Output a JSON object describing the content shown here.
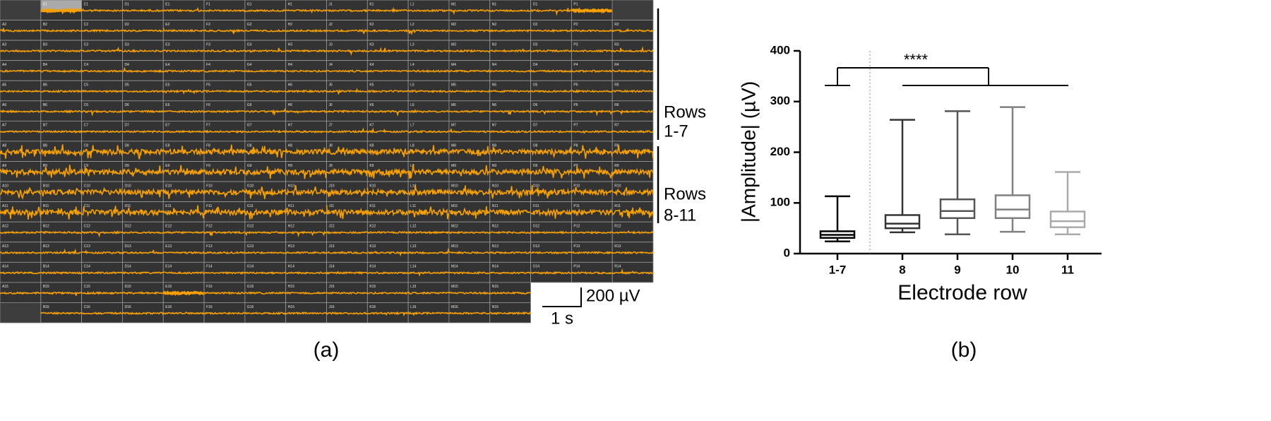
{
  "panel_a": {
    "label": "(a)",
    "rows": [
      [
        null,
        "B1",
        "C1",
        "D1",
        "E1",
        "F1",
        "G1",
        "H1",
        "J1",
        "K1",
        "L1",
        "M1",
        "N1",
        "O1",
        "P1",
        null
      ],
      [
        "A2",
        "B2",
        "C2",
        "D2",
        "E2",
        "F2",
        "G2",
        "H2",
        "J2",
        "K2",
        "L2",
        "M2",
        "N2",
        "O2",
        "P2",
        "R2"
      ],
      [
        "A3",
        "B3",
        "C3",
        "D3",
        "E3",
        "F3",
        "G3",
        "H3",
        "J3",
        "K3",
        "L3",
        "M3",
        "N3",
        "O3",
        "P3",
        "R3"
      ],
      [
        "A4",
        "B4",
        "C4",
        "D4",
        "E4",
        "F4",
        "G4",
        "H4",
        "J4",
        "K4",
        "L4",
        "M4",
        "N4",
        "O4",
        "P4",
        "R4"
      ],
      [
        "A5",
        "B5",
        "C5",
        "D5",
        "E5",
        "F5",
        "G5",
        "H5",
        "J5",
        "K5",
        "L5",
        "M5",
        "N5",
        "O5",
        "P5",
        "R5"
      ],
      [
        "A6",
        "B6",
        "C6",
        "D6",
        "E6",
        "F6",
        "G6",
        "H6",
        "J6",
        "K6",
        "L6",
        "M6",
        "N6",
        "O6",
        "P6",
        "R6"
      ],
      [
        "A7",
        "B7",
        "C7",
        "D7",
        "E7",
        "F7",
        "G7",
        "H7",
        "J7",
        "K7",
        "L7",
        "M7",
        "N7",
        "O7",
        "P7",
        "R7"
      ],
      [
        "A8",
        "B8",
        "C8",
        "D8",
        "E8",
        "F8",
        "G8",
        "H8",
        "J8",
        "K8",
        "L8",
        "M8",
        "N8",
        "O8",
        "P8",
        "R8"
      ],
      [
        "A9",
        "B9",
        "C9",
        "D9",
        "E9",
        "F9",
        "G9",
        "H9",
        "J9",
        "K9",
        "L9",
        "M9",
        "N9",
        "O9",
        "P9",
        "R9"
      ],
      [
        "A10",
        "B10",
        "C10",
        "D10",
        "E10",
        "F10",
        "G10",
        "H10",
        "J10",
        "K10",
        "L10",
        "M10",
        "N10",
        "O10",
        "P10",
        "R10"
      ],
      [
        "A11",
        "B11",
        "C11",
        "D11",
        "E11",
        "F11",
        "G11",
        "H11",
        "J11",
        "K11",
        "L11",
        "M11",
        "N11",
        "O11",
        "P11",
        "R11"
      ],
      [
        "A12",
        "B12",
        "C12",
        "D12",
        "E12",
        "F12",
        "G12",
        "H12",
        "J12",
        "K12",
        "L12",
        "M12",
        "N12",
        "O12",
        "P12",
        "R12"
      ],
      [
        "A13",
        "B13",
        "C13",
        "D13",
        "E13",
        "F13",
        "G13",
        "H13",
        "J13",
        "K13",
        "L13",
        "M13",
        "N13",
        "O13",
        "P13",
        "R13"
      ],
      [
        "A14",
        "B14",
        "C14",
        "D14",
        "E14",
        "F14",
        "G14",
        "H14",
        "J14",
        "K14",
        "L14",
        "M14",
        "N14",
        "O14",
        "P14",
        "R14"
      ],
      [
        "A15",
        "B15",
        "C15",
        "D15",
        "E15",
        "F15",
        "G15",
        "H15",
        "J15",
        "K15",
        "L15",
        "M15",
        "N15"
      ],
      [
        null,
        "B16",
        "C16",
        "D16",
        "E16",
        "F16",
        "G16",
        "H16",
        "J16",
        "K16",
        "L16",
        "M16",
        "N16"
      ]
    ],
    "brackets": [
      {
        "word": "Rows",
        "range": "1-7"
      },
      {
        "word": "Rows",
        "range": "8-11"
      }
    ],
    "scale_bar": {
      "voltage": "200 µV",
      "time": "1 s"
    }
  },
  "chart_data": {
    "type": "box",
    "label": "(b)",
    "y_label": "|Amplitude| (µV)",
    "x_label": "Electrode row",
    "categories": [
      "1-7",
      "8",
      "9",
      "10",
      "11"
    ],
    "min": [
      24,
      42,
      38,
      43,
      38
    ],
    "q1": [
      31,
      50,
      70,
      70,
      52
    ],
    "median": [
      37,
      59,
      84,
      87,
      64
    ],
    "q3": [
      44,
      76,
      107,
      115,
      83
    ],
    "max": [
      113,
      264,
      281,
      289,
      161
    ],
    "colors": [
      "#000000",
      "#333333",
      "#555555",
      "#808080",
      "#aaaaaa"
    ],
    "ylim": [
      0,
      400
    ],
    "yticks": [
      0,
      100,
      200,
      300,
      400
    ],
    "annotation": "****"
  }
}
